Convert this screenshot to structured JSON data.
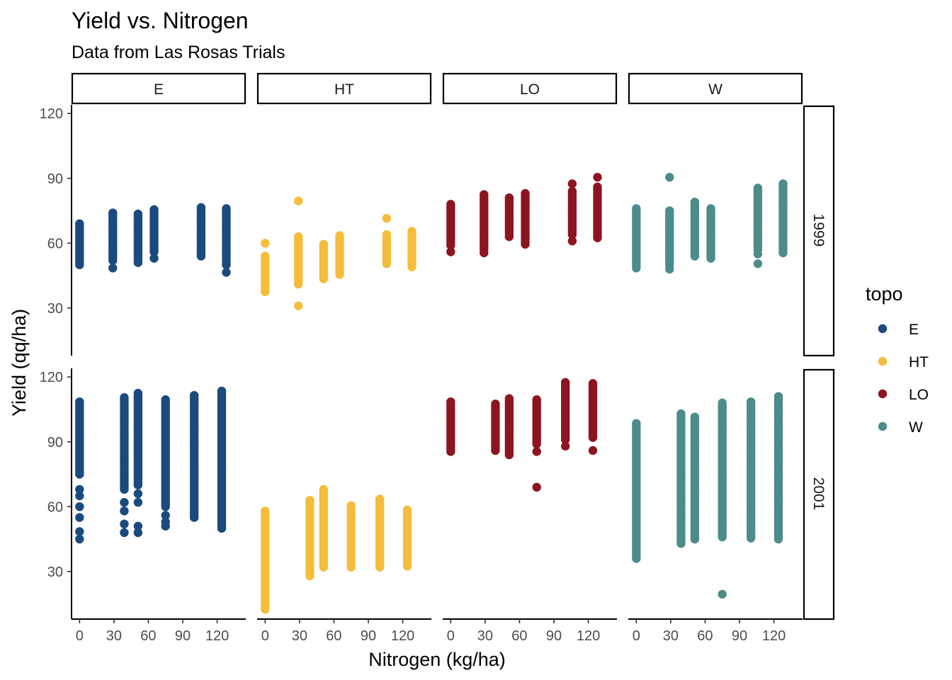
{
  "chart_data": {
    "type": "scatter",
    "title": "Yield vs. Nitrogen",
    "subtitle": "Data from Las Rosas Trials",
    "xlabel": "Nitrogen (kg/ha)",
    "ylabel": "Yield (qq/ha)",
    "xlim": [
      -7,
      145
    ],
    "ylim": [
      8,
      124
    ],
    "x_ticks": [
      0,
      30,
      60,
      90,
      120
    ],
    "y_ticks": [
      30,
      60,
      90,
      120
    ],
    "grid": false,
    "legend": {
      "title": "topo",
      "position": "right",
      "entries": [
        {
          "label": "E",
          "color": "#1b4a7e"
        },
        {
          "label": "HT",
          "color": "#f5bd3c"
        },
        {
          "label": "LO",
          "color": "#8c1520"
        },
        {
          "label": "W",
          "color": "#4d8c8b"
        }
      ]
    },
    "facet_cols": [
      "E",
      "HT",
      "LO",
      "W"
    ],
    "facet_rows": [
      "1999",
      "2001"
    ],
    "nitrogen_levels": [
      0,
      29,
      39,
      51,
      75,
      100,
      131
    ],
    "panels": [
      {
        "topo": "E",
        "year": "1999",
        "groups": [
          {
            "x": 0,
            "ymin": 50,
            "ymax": 69,
            "extra": []
          },
          {
            "x": 29,
            "ymin": 52,
            "ymax": 74,
            "extra": [
              48.5
            ]
          },
          {
            "x": 51,
            "ymin": 51,
            "ymax": 73.5,
            "extra": []
          },
          {
            "x": 65,
            "ymin": 56,
            "ymax": 75.5,
            "extra": [
              53
            ]
          },
          {
            "x": 106,
            "ymin": 54,
            "ymax": 76.5,
            "extra": []
          },
          {
            "x": 128,
            "ymin": 50,
            "ymax": 76,
            "extra": [
              46.5
            ]
          }
        ]
      },
      {
        "topo": "HT",
        "year": "1999",
        "groups": [
          {
            "x": 0,
            "ymin": 37.5,
            "ymax": 54,
            "extra": [
              60
            ]
          },
          {
            "x": 29,
            "ymin": 41,
            "ymax": 63,
            "extra": [
              79.5,
              31
            ]
          },
          {
            "x": 51,
            "ymin": 43.5,
            "ymax": 59.5,
            "extra": []
          },
          {
            "x": 65,
            "ymin": 45.5,
            "ymax": 63.5,
            "extra": []
          },
          {
            "x": 106,
            "ymin": 50.5,
            "ymax": 64,
            "extra": [
              71.5
            ]
          },
          {
            "x": 128,
            "ymin": 49,
            "ymax": 65.5,
            "extra": []
          }
        ]
      },
      {
        "topo": "LO",
        "year": "1999",
        "groups": [
          {
            "x": 0,
            "ymin": 59,
            "ymax": 78,
            "extra": [
              56
            ]
          },
          {
            "x": 29,
            "ymin": 57,
            "ymax": 82.5,
            "extra": [
              55.5
            ]
          },
          {
            "x": 51,
            "ymin": 63,
            "ymax": 81,
            "extra": []
          },
          {
            "x": 65,
            "ymin": 59.5,
            "ymax": 83,
            "extra": []
          },
          {
            "x": 106,
            "ymin": 64,
            "ymax": 84,
            "extra": [
              87.5,
              61
            ]
          },
          {
            "x": 128,
            "ymin": 62.5,
            "ymax": 86,
            "extra": [
              90.5
            ]
          }
        ]
      },
      {
        "topo": "W",
        "year": "1999",
        "groups": [
          {
            "x": 0,
            "ymin": 48.5,
            "ymax": 76,
            "extra": []
          },
          {
            "x": 29,
            "ymin": 50,
            "ymax": 75,
            "extra": [
              90.5,
              48
            ]
          },
          {
            "x": 51,
            "ymin": 54,
            "ymax": 79,
            "extra": []
          },
          {
            "x": 65,
            "ymin": 53,
            "ymax": 76,
            "extra": []
          },
          {
            "x": 106,
            "ymin": 57,
            "ymax": 85.5,
            "extra": [
              55,
              50.5
            ]
          },
          {
            "x": 128,
            "ymin": 55.5,
            "ymax": 87.5,
            "extra": []
          }
        ]
      },
      {
        "topo": "E",
        "year": "2001",
        "groups": [
          {
            "x": 0,
            "ymin": 75,
            "ymax": 108.5,
            "extra": [
              65,
              60,
              55,
              48.5,
              45,
              68
            ]
          },
          {
            "x": 39,
            "ymin": 68,
            "ymax": 110.5,
            "extra": [
              62,
              58,
              52,
              48
            ]
          },
          {
            "x": 51,
            "ymin": 70,
            "ymax": 112.5,
            "extra": [
              66,
              62,
              51,
              48,
              86
            ]
          },
          {
            "x": 75,
            "ymin": 60,
            "ymax": 109.5,
            "extra": [
              56,
              53,
              51
            ]
          },
          {
            "x": 100,
            "ymin": 55,
            "ymax": 111.5,
            "extra": []
          },
          {
            "x": 124,
            "ymin": 50,
            "ymax": 113.5,
            "extra": []
          }
        ]
      },
      {
        "topo": "HT",
        "year": "2001",
        "groups": [
          {
            "x": 0,
            "ymin": 12.5,
            "ymax": 58,
            "extra": []
          },
          {
            "x": 39,
            "ymin": 28,
            "ymax": 63,
            "extra": []
          },
          {
            "x": 51,
            "ymin": 32,
            "ymax": 68,
            "extra": []
          },
          {
            "x": 75,
            "ymin": 32,
            "ymax": 60.5,
            "extra": []
          },
          {
            "x": 100,
            "ymin": 32,
            "ymax": 63.5,
            "extra": []
          },
          {
            "x": 124,
            "ymin": 32.5,
            "ymax": 58.5,
            "extra": []
          }
        ]
      },
      {
        "topo": "LO",
        "year": "2001",
        "groups": [
          {
            "x": 0,
            "ymin": 85.5,
            "ymax": 108.5,
            "extra": []
          },
          {
            "x": 39,
            "ymin": 86,
            "ymax": 107.5,
            "extra": []
          },
          {
            "x": 51,
            "ymin": 84,
            "ymax": 110,
            "extra": []
          },
          {
            "x": 75,
            "ymin": 89,
            "ymax": 109.5,
            "extra": [
              85.5,
              69
            ]
          },
          {
            "x": 100,
            "ymin": 91,
            "ymax": 117.5,
            "extra": [
              88
            ]
          },
          {
            "x": 124,
            "ymin": 92,
            "ymax": 117,
            "extra": [
              86
            ]
          }
        ]
      },
      {
        "topo": "W",
        "year": "2001",
        "groups": [
          {
            "x": 0,
            "ymin": 36,
            "ymax": 98.5,
            "extra": []
          },
          {
            "x": 39,
            "ymin": 43,
            "ymax": 103,
            "extra": []
          },
          {
            "x": 51,
            "ymin": 45,
            "ymax": 101.5,
            "extra": []
          },
          {
            "x": 75,
            "ymin": 46,
            "ymax": 108,
            "extra": [
              19.5
            ]
          },
          {
            "x": 100,
            "ymin": 45.5,
            "ymax": 108.5,
            "extra": []
          },
          {
            "x": 124,
            "ymin": 45,
            "ymax": 111,
            "extra": []
          }
        ]
      }
    ]
  }
}
